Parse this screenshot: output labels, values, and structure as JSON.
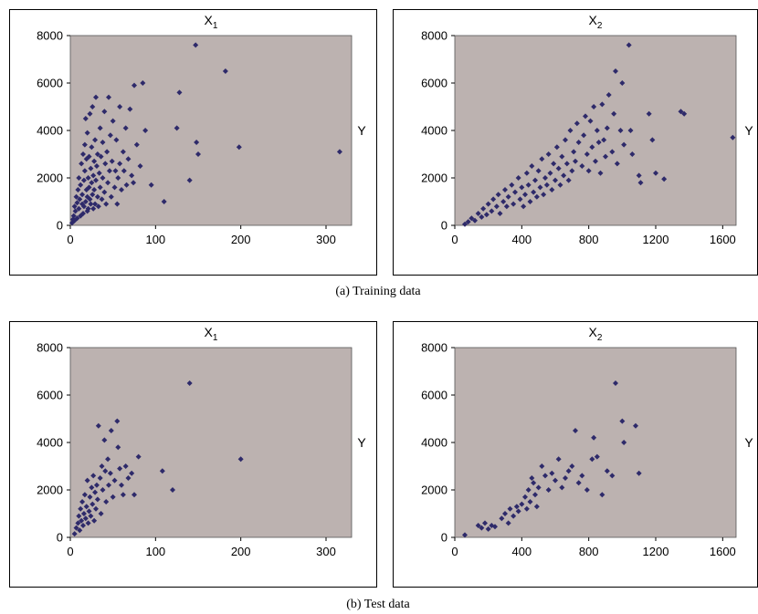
{
  "captions": [
    "(a) Training data",
    "(b) Test data"
  ],
  "colors": {
    "marker": "#2e2a6a",
    "plot_bg": "#bcb2b0",
    "frame": "#000000"
  },
  "chart_data": [
    {
      "type": "scatter",
      "group": "(a) Training data",
      "title": "X",
      "subscript": "1",
      "ylabel": "Y",
      "xlim": [
        0,
        330
      ],
      "ylim": [
        0,
        8000
      ],
      "xticks": [
        0,
        100,
        200,
        300
      ],
      "yticks": [
        0,
        2000,
        4000,
        6000,
        8000
      ],
      "grid": false,
      "points": [
        [
          2,
          100
        ],
        [
          3,
          250
        ],
        [
          4,
          400
        ],
        [
          5,
          200
        ],
        [
          5,
          800
        ],
        [
          6,
          600
        ],
        [
          7,
          1200
        ],
        [
          8,
          300
        ],
        [
          8,
          950
        ],
        [
          9,
          1500
        ],
        [
          10,
          700
        ],
        [
          10,
          2000
        ],
        [
          11,
          1100
        ],
        [
          12,
          400
        ],
        [
          12,
          1700
        ],
        [
          13,
          2600
        ],
        [
          14,
          900
        ],
        [
          14,
          1300
        ],
        [
          15,
          3000
        ],
        [
          15,
          500
        ],
        [
          16,
          1900
        ],
        [
          16,
          800
        ],
        [
          17,
          2300
        ],
        [
          17,
          3400
        ],
        [
          18,
          1000
        ],
        [
          18,
          4500
        ],
        [
          19,
          1500
        ],
        [
          19,
          2800
        ],
        [
          20,
          600
        ],
        [
          20,
          1200
        ],
        [
          20,
          3900
        ],
        [
          21,
          2000
        ],
        [
          21,
          700
        ],
        [
          22,
          1600
        ],
        [
          22,
          2900
        ],
        [
          23,
          1100
        ],
        [
          23,
          4700
        ],
        [
          24,
          2400
        ],
        [
          24,
          900
        ],
        [
          25,
          1800
        ],
        [
          25,
          3300
        ],
        [
          26,
          5000
        ],
        [
          26,
          1300
        ],
        [
          27,
          2100
        ],
        [
          27,
          700
        ],
        [
          28,
          2700
        ],
        [
          28,
          1500
        ],
        [
          29,
          3600
        ],
        [
          29,
          900
        ],
        [
          30,
          1900
        ],
        [
          30,
          5400
        ],
        [
          31,
          2500
        ],
        [
          32,
          1200
        ],
        [
          32,
          3000
        ],
        [
          33,
          800
        ],
        [
          34,
          2200
        ],
        [
          35,
          4100
        ],
        [
          35,
          1600
        ],
        [
          36,
          2900
        ],
        [
          37,
          1100
        ],
        [
          38,
          3500
        ],
        [
          38,
          2000
        ],
        [
          40,
          4800
        ],
        [
          40,
          1400
        ],
        [
          41,
          2600
        ],
        [
          42,
          900
        ],
        [
          43,
          3100
        ],
        [
          44,
          1800
        ],
        [
          45,
          5400
        ],
        [
          46,
          2300
        ],
        [
          47,
          3800
        ],
        [
          48,
          1200
        ],
        [
          49,
          2700
        ],
        [
          50,
          4400
        ],
        [
          52,
          1600
        ],
        [
          53,
          2300
        ],
        [
          54,
          3600
        ],
        [
          55,
          900
        ],
        [
          56,
          2000
        ],
        [
          58,
          5000
        ],
        [
          58,
          2600
        ],
        [
          60,
          1500
        ],
        [
          62,
          3100
        ],
        [
          63,
          2300
        ],
        [
          65,
          4100
        ],
        [
          66,
          1700
        ],
        [
          68,
          2800
        ],
        [
          70,
          4900
        ],
        [
          72,
          2100
        ],
        [
          74,
          1800
        ],
        [
          75,
          5900
        ],
        [
          78,
          3400
        ],
        [
          82,
          2500
        ],
        [
          85,
          6000
        ],
        [
          88,
          4000
        ],
        [
          95,
          1700
        ],
        [
          110,
          1000
        ],
        [
          128,
          5600
        ],
        [
          125,
          4100
        ],
        [
          140,
          1900
        ],
        [
          148,
          3500
        ],
        [
          150,
          3000
        ],
        [
          147,
          7600
        ],
        [
          182,
          6500
        ],
        [
          198,
          3300
        ],
        [
          316,
          3100
        ]
      ]
    },
    {
      "type": "scatter",
      "group": "(a) Training data",
      "title": "X",
      "subscript": "2",
      "ylabel": "Y",
      "xlim": [
        0,
        1680
      ],
      "ylim": [
        0,
        8000
      ],
      "xticks": [
        0,
        400,
        800,
        1200,
        1600
      ],
      "yticks": [
        0,
        2000,
        4000,
        6000,
        8000
      ],
      "grid": false,
      "points": [
        [
          60,
          50
        ],
        [
          80,
          150
        ],
        [
          100,
          300
        ],
        [
          120,
          200
        ],
        [
          140,
          500
        ],
        [
          160,
          350
        ],
        [
          170,
          700
        ],
        [
          190,
          450
        ],
        [
          200,
          900
        ],
        [
          220,
          600
        ],
        [
          230,
          1100
        ],
        [
          250,
          800
        ],
        [
          260,
          1300
        ],
        [
          270,
          500
        ],
        [
          290,
          1000
        ],
        [
          300,
          1500
        ],
        [
          310,
          800
        ],
        [
          320,
          1200
        ],
        [
          340,
          1700
        ],
        [
          350,
          900
        ],
        [
          360,
          1400
        ],
        [
          380,
          2000
        ],
        [
          390,
          1100
        ],
        [
          400,
          1600
        ],
        [
          410,
          800
        ],
        [
          420,
          1300
        ],
        [
          430,
          2200
        ],
        [
          440,
          1700
        ],
        [
          450,
          1000
        ],
        [
          460,
          2500
        ],
        [
          470,
          1400
        ],
        [
          480,
          1900
        ],
        [
          490,
          1200
        ],
        [
          500,
          2300
        ],
        [
          510,
          1600
        ],
        [
          520,
          2800
        ],
        [
          530,
          1300
        ],
        [
          540,
          2000
        ],
        [
          550,
          1700
        ],
        [
          560,
          3000
        ],
        [
          570,
          2200
        ],
        [
          580,
          1500
        ],
        [
          590,
          2600
        ],
        [
          600,
          1900
        ],
        [
          610,
          3300
        ],
        [
          620,
          2400
        ],
        [
          630,
          1700
        ],
        [
          640,
          2900
        ],
        [
          650,
          2100
        ],
        [
          660,
          3600
        ],
        [
          670,
          2600
        ],
        [
          680,
          1900
        ],
        [
          690,
          4000
        ],
        [
          700,
          2300
        ],
        [
          710,
          3100
        ],
        [
          720,
          2700
        ],
        [
          730,
          4300
        ],
        [
          740,
          3500
        ],
        [
          760,
          2500
        ],
        [
          770,
          3800
        ],
        [
          780,
          4600
        ],
        [
          790,
          3000
        ],
        [
          800,
          2300
        ],
        [
          810,
          4400
        ],
        [
          820,
          3300
        ],
        [
          830,
          5000
        ],
        [
          840,
          2700
        ],
        [
          850,
          4000
        ],
        [
          860,
          3500
        ],
        [
          870,
          2200
        ],
        [
          880,
          5100
        ],
        [
          890,
          3600
        ],
        [
          900,
          2900
        ],
        [
          910,
          4100
        ],
        [
          920,
          5500
        ],
        [
          940,
          3100
        ],
        [
          950,
          4700
        ],
        [
          960,
          6500
        ],
        [
          970,
          2600
        ],
        [
          990,
          4000
        ],
        [
          1000,
          6000
        ],
        [
          1010,
          3400
        ],
        [
          1040,
          7600
        ],
        [
          1050,
          4000
        ],
        [
          1060,
          3000
        ],
        [
          1100,
          2100
        ],
        [
          1110,
          1800
        ],
        [
          1160,
          4700
        ],
        [
          1180,
          3600
        ],
        [
          1200,
          2200
        ],
        [
          1250,
          1950
        ],
        [
          1350,
          4800
        ],
        [
          1370,
          4700
        ],
        [
          1660,
          3700
        ]
      ]
    },
    {
      "type": "scatter",
      "group": "(b) Test data",
      "title": "X",
      "subscript": "1",
      "ylabel": "Y",
      "xlim": [
        0,
        330
      ],
      "ylim": [
        0,
        8000
      ],
      "xticks": [
        0,
        100,
        200,
        300
      ],
      "yticks": [
        0,
        2000,
        4000,
        6000,
        8000
      ],
      "grid": false,
      "points": [
        [
          5,
          150
        ],
        [
          7,
          400
        ],
        [
          9,
          600
        ],
        [
          10,
          900
        ],
        [
          11,
          300
        ],
        [
          12,
          1200
        ],
        [
          13,
          700
        ],
        [
          14,
          1500
        ],
        [
          15,
          500
        ],
        [
          16,
          1000
        ],
        [
          17,
          1800
        ],
        [
          18,
          800
        ],
        [
          19,
          1300
        ],
        [
          20,
          2400
        ],
        [
          21,
          600
        ],
        [
          22,
          1100
        ],
        [
          23,
          1700
        ],
        [
          24,
          900
        ],
        [
          25,
          2100
        ],
        [
          26,
          1400
        ],
        [
          27,
          2600
        ],
        [
          28,
          700
        ],
        [
          29,
          1900
        ],
        [
          30,
          1200
        ],
        [
          31,
          2200
        ],
        [
          32,
          1600
        ],
        [
          33,
          4700
        ],
        [
          35,
          2500
        ],
        [
          36,
          1000
        ],
        [
          37,
          3000
        ],
        [
          38,
          2000
        ],
        [
          40,
          4100
        ],
        [
          41,
          2800
        ],
        [
          42,
          1500
        ],
        [
          44,
          3300
        ],
        [
          45,
          2200
        ],
        [
          47,
          2700
        ],
        [
          48,
          4500
        ],
        [
          50,
          1700
        ],
        [
          52,
          2400
        ],
        [
          55,
          4900
        ],
        [
          56,
          3800
        ],
        [
          58,
          2900
        ],
        [
          60,
          2200
        ],
        [
          62,
          1800
        ],
        [
          65,
          3000
        ],
        [
          68,
          2500
        ],
        [
          72,
          2700
        ],
        [
          75,
          1800
        ],
        [
          80,
          3400
        ],
        [
          108,
          2800
        ],
        [
          120,
          2000
        ],
        [
          140,
          6500
        ],
        [
          200,
          3300
        ]
      ]
    },
    {
      "type": "scatter",
      "group": "(b) Test data",
      "title": "X",
      "subscript": "2",
      "ylabel": "Y",
      "xlim": [
        0,
        1680
      ],
      "ylim": [
        0,
        8000
      ],
      "xticks": [
        0,
        400,
        800,
        1200,
        1600
      ],
      "yticks": [
        0,
        2000,
        4000,
        6000,
        8000
      ],
      "grid": false,
      "points": [
        [
          60,
          100
        ],
        [
          140,
          500
        ],
        [
          160,
          400
        ],
        [
          180,
          600
        ],
        [
          200,
          350
        ],
        [
          220,
          500
        ],
        [
          240,
          450
        ],
        [
          280,
          800
        ],
        [
          300,
          1000
        ],
        [
          320,
          600
        ],
        [
          330,
          1200
        ],
        [
          350,
          900
        ],
        [
          370,
          1300
        ],
        [
          380,
          1100
        ],
        [
          400,
          1400
        ],
        [
          420,
          1700
        ],
        [
          430,
          1200
        ],
        [
          440,
          2000
        ],
        [
          450,
          1500
        ],
        [
          460,
          2500
        ],
        [
          470,
          2300
        ],
        [
          480,
          1800
        ],
        [
          490,
          1300
        ],
        [
          500,
          2100
        ],
        [
          520,
          3000
        ],
        [
          540,
          2600
        ],
        [
          560,
          2000
        ],
        [
          580,
          2700
        ],
        [
          600,
          2400
        ],
        [
          620,
          3300
        ],
        [
          640,
          2100
        ],
        [
          660,
          2500
        ],
        [
          680,
          2800
        ],
        [
          700,
          3000
        ],
        [
          720,
          4500
        ],
        [
          740,
          2300
        ],
        [
          760,
          2600
        ],
        [
          790,
          2000
        ],
        [
          820,
          3300
        ],
        [
          830,
          4200
        ],
        [
          850,
          3400
        ],
        [
          880,
          1800
        ],
        [
          910,
          2800
        ],
        [
          940,
          2600
        ],
        [
          960,
          6500
        ],
        [
          1000,
          4900
        ],
        [
          1010,
          4000
        ],
        [
          1080,
          4700
        ],
        [
          1100,
          2700
        ]
      ]
    }
  ]
}
